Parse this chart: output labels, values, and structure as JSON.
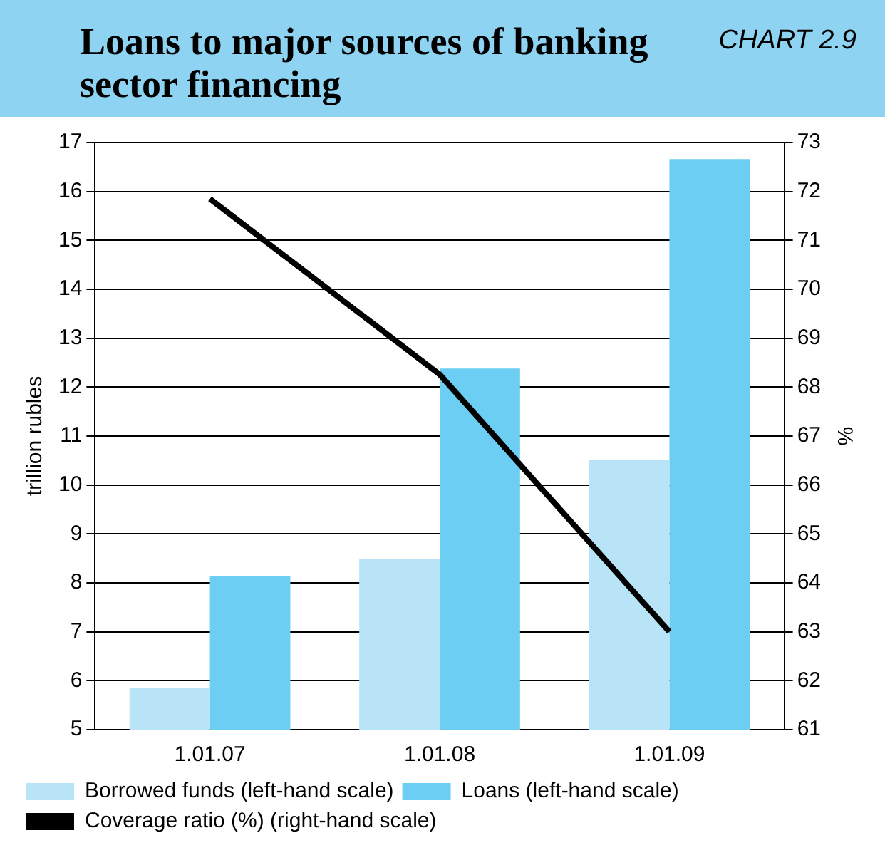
{
  "chart_data": {
    "type": "bar",
    "title": "Loans to major sources of banking sector financing",
    "subtitle": "CHART 2.9",
    "ylabel": "trillion rubles",
    "y2label": "%",
    "categories": [
      "1.01.07",
      "1.01.08",
      "1.01.09"
    ],
    "series": [
      {
        "name": "Borrowed funds (left-hand scale)",
        "color": "#b9e4f7",
        "values": [
          5.85,
          8.48,
          10.51
        ]
      },
      {
        "name": "Loans (left-hand scale)",
        "color": "#6dcef3",
        "values": [
          8.13,
          12.38,
          16.66
        ]
      },
      {
        "name": "Coverage ratio (%) (right-hand scale)",
        "color": "#000000",
        "type": "line",
        "axis": "y2",
        "values": [
          71.85,
          68.26,
          63.0
        ]
      }
    ],
    "ylim": [
      5,
      17
    ],
    "yticks": [
      5,
      6,
      7,
      8,
      9,
      10,
      11,
      12,
      13,
      14,
      15,
      16,
      17
    ],
    "y2lim": [
      61,
      73
    ],
    "y2ticks": [
      61,
      62,
      63,
      64,
      65,
      66,
      67,
      68,
      69,
      70,
      71,
      72,
      73
    ],
    "grid": "y",
    "legend": "bottom",
    "marker": "none"
  }
}
